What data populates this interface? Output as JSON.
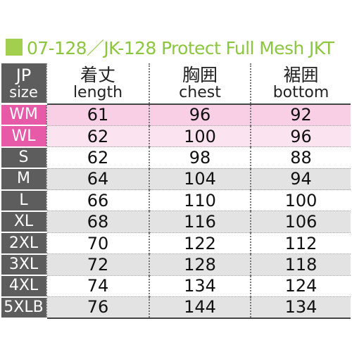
{
  "title": "07-128／JK-128 Protect Full Mesh JKT",
  "headers": {
    "size": {
      "jp": "JP",
      "en": "size"
    },
    "length": {
      "jp": "着丈",
      "en": "length"
    },
    "chest": {
      "jp": "胸囲",
      "en": "chest"
    },
    "bottom": {
      "jp": "裾囲",
      "en": "bottom"
    }
  },
  "rows": [
    {
      "size": "WM",
      "length": "61",
      "chest": "96",
      "bottom": "92"
    },
    {
      "size": "WL",
      "length": "62",
      "chest": "100",
      "bottom": "96"
    },
    {
      "size": "S",
      "length": "62",
      "chest": "98",
      "bottom": "88"
    },
    {
      "size": "M",
      "length": "64",
      "chest": "104",
      "bottom": "94"
    },
    {
      "size": "L",
      "length": "66",
      "chest": "110",
      "bottom": "100"
    },
    {
      "size": "XL",
      "length": "68",
      "chest": "116",
      "bottom": "106"
    },
    {
      "size": "2XL",
      "length": "70",
      "chest": "122",
      "bottom": "112"
    },
    {
      "size": "3XL",
      "length": "72",
      "chest": "128",
      "bottom": "118"
    },
    {
      "size": "4XL",
      "length": "74",
      "chest": "134",
      "bottom": "124"
    },
    {
      "size": "5XLB",
      "length": "76",
      "chest": "144",
      "bottom": "134"
    }
  ],
  "colors": {
    "title_accent": "#8cc63f",
    "size_label_bg": "#5d5d5d",
    "women_label_bg": "#e65aa8",
    "women_row_bg": "#f8cfe4",
    "alt_row_bg": "#e3e3e3"
  }
}
